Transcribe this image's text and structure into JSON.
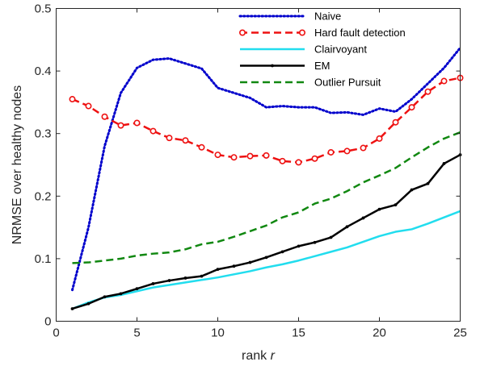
{
  "chart_data": {
    "type": "line",
    "title": "",
    "xlabel": "rank",
    "xlabel_var": "r",
    "ylabel": "NRMSE over healthy nodes",
    "xlim": [
      0,
      25
    ],
    "ylim": [
      0,
      0.5
    ],
    "xticks": [
      0,
      5,
      10,
      15,
      20,
      25
    ],
    "yticks": [
      0,
      0.1,
      0.2,
      0.3,
      0.4,
      0.5
    ],
    "grid": false,
    "legend_position": "top-right",
    "x": [
      1,
      2,
      3,
      4,
      5,
      6,
      7,
      8,
      9,
      10,
      11,
      12,
      13,
      14,
      15,
      16,
      17,
      18,
      19,
      20,
      21,
      22,
      23,
      24,
      25
    ],
    "series": [
      {
        "name": "Naive",
        "color": "#0000cc",
        "style": "dotted",
        "marker": "none",
        "values": [
          0.05,
          0.15,
          0.28,
          0.365,
          0.405,
          0.418,
          0.42,
          0.412,
          0.404,
          0.373,
          0.365,
          0.357,
          0.342,
          0.344,
          0.342,
          0.342,
          0.333,
          0.334,
          0.33,
          0.34,
          0.335,
          0.355,
          0.38,
          0.405,
          0.437
        ]
      },
      {
        "name": "Hard fault detection",
        "color": "#ee1111",
        "style": "dashed",
        "marker": "circle",
        "values": [
          0.355,
          0.344,
          0.327,
          0.313,
          0.317,
          0.304,
          0.293,
          0.289,
          0.278,
          0.266,
          0.262,
          0.264,
          0.265,
          0.256,
          0.254,
          0.26,
          0.27,
          0.272,
          0.277,
          0.292,
          0.318,
          0.342,
          0.367,
          0.384,
          0.389
        ]
      },
      {
        "name": "Clairvoyant",
        "color": "#22ddee",
        "style": "solid",
        "marker": "none",
        "values": [
          0.02,
          0.03,
          0.038,
          0.042,
          0.048,
          0.054,
          0.058,
          0.062,
          0.066,
          0.07,
          0.075,
          0.08,
          0.086,
          0.091,
          0.097,
          0.104,
          0.111,
          0.118,
          0.127,
          0.136,
          0.143,
          0.147,
          0.156,
          0.166,
          0.176
        ]
      },
      {
        "name": "EM",
        "color": "#000000",
        "style": "solid",
        "marker": "dot",
        "values": [
          0.02,
          0.028,
          0.039,
          0.044,
          0.052,
          0.06,
          0.065,
          0.069,
          0.072,
          0.083,
          0.088,
          0.094,
          0.102,
          0.111,
          0.12,
          0.126,
          0.134,
          0.151,
          0.165,
          0.179,
          0.186,
          0.21,
          0.22,
          0.252,
          0.266
        ]
      },
      {
        "name": "Outlier Pursuit",
        "color": "#118811",
        "style": "dashed",
        "marker": "none",
        "values": [
          0.093,
          0.094,
          0.097,
          0.1,
          0.105,
          0.108,
          0.11,
          0.115,
          0.123,
          0.127,
          0.135,
          0.144,
          0.153,
          0.166,
          0.174,
          0.188,
          0.196,
          0.208,
          0.222,
          0.233,
          0.245,
          0.262,
          0.278,
          0.292,
          0.302
        ]
      }
    ]
  }
}
